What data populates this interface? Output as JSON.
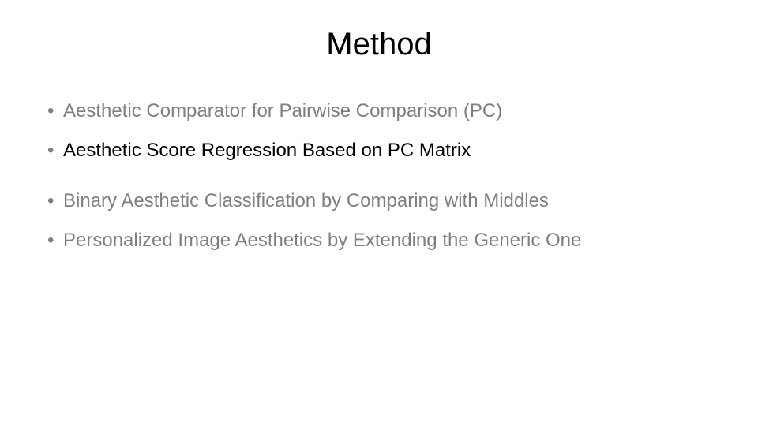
{
  "slide": {
    "title": "Method",
    "title_fontsize": 40,
    "title_color": "#000000",
    "background_color": "#ffffff",
    "bullet_fontsize": 24,
    "bullet_marker": "•",
    "bullets": [
      {
        "text": "Aesthetic Comparator for Pairwise Comparison (PC)",
        "text_color": "#7f7f7f",
        "marker_color": "#7f7f7f"
      },
      {
        "text": "Aesthetic Score Regression Based on PC Matrix",
        "text_color": "#000000",
        "marker_color": "#7f7f7f"
      },
      {
        "text": "Binary Aesthetic Classification by Comparing with Middles",
        "text_color": "#7f7f7f",
        "marker_color": "#7f7f7f"
      },
      {
        "text": "Personalized Image Aesthetics by Extending the Generic One",
        "text_color": "#7f7f7f",
        "marker_color": "#7f7f7f"
      }
    ]
  }
}
